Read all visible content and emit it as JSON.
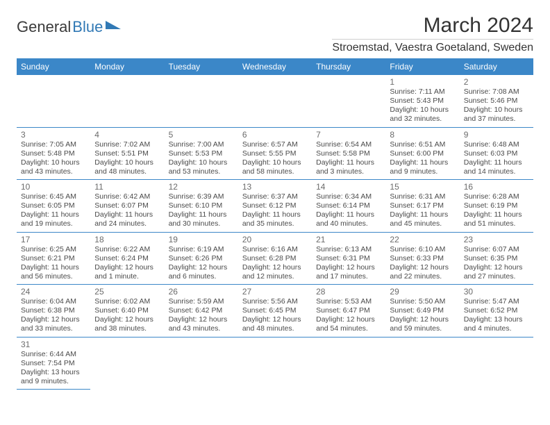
{
  "logo": {
    "text1": "General",
    "text2": "Blue"
  },
  "header": {
    "month_title": "March 2024",
    "location": "Stroemstad, Vaestra Goetaland, Sweden"
  },
  "style": {
    "accent": "#3b87c8",
    "logo_blue": "#3179b5",
    "text_color": "#333333",
    "cell_text": "#4a4a4a",
    "daynum_color": "#6b6b6b",
    "daynum_fontsize": 12,
    "cell_fontsize": 10.5,
    "header_fontsize": 12,
    "title_fontsize": 30,
    "location_fontsize": 16,
    "bg": "#ffffff"
  },
  "days_of_week": [
    "Sunday",
    "Monday",
    "Tuesday",
    "Wednesday",
    "Thursday",
    "Friday",
    "Saturday"
  ],
  "weeks": [
    [
      null,
      null,
      null,
      null,
      null,
      {
        "n": "1",
        "sunrise": "Sunrise: 7:11 AM",
        "sunset": "Sunset: 5:43 PM",
        "daylight1": "Daylight: 10 hours",
        "daylight2": "and 32 minutes."
      },
      {
        "n": "2",
        "sunrise": "Sunrise: 7:08 AM",
        "sunset": "Sunset: 5:46 PM",
        "daylight1": "Daylight: 10 hours",
        "daylight2": "and 37 minutes."
      }
    ],
    [
      {
        "n": "3",
        "sunrise": "Sunrise: 7:05 AM",
        "sunset": "Sunset: 5:48 PM",
        "daylight1": "Daylight: 10 hours",
        "daylight2": "and 43 minutes."
      },
      {
        "n": "4",
        "sunrise": "Sunrise: 7:02 AM",
        "sunset": "Sunset: 5:51 PM",
        "daylight1": "Daylight: 10 hours",
        "daylight2": "and 48 minutes."
      },
      {
        "n": "5",
        "sunrise": "Sunrise: 7:00 AM",
        "sunset": "Sunset: 5:53 PM",
        "daylight1": "Daylight: 10 hours",
        "daylight2": "and 53 minutes."
      },
      {
        "n": "6",
        "sunrise": "Sunrise: 6:57 AM",
        "sunset": "Sunset: 5:55 PM",
        "daylight1": "Daylight: 10 hours",
        "daylight2": "and 58 minutes."
      },
      {
        "n": "7",
        "sunrise": "Sunrise: 6:54 AM",
        "sunset": "Sunset: 5:58 PM",
        "daylight1": "Daylight: 11 hours",
        "daylight2": "and 3 minutes."
      },
      {
        "n": "8",
        "sunrise": "Sunrise: 6:51 AM",
        "sunset": "Sunset: 6:00 PM",
        "daylight1": "Daylight: 11 hours",
        "daylight2": "and 9 minutes."
      },
      {
        "n": "9",
        "sunrise": "Sunrise: 6:48 AM",
        "sunset": "Sunset: 6:03 PM",
        "daylight1": "Daylight: 11 hours",
        "daylight2": "and 14 minutes."
      }
    ],
    [
      {
        "n": "10",
        "sunrise": "Sunrise: 6:45 AM",
        "sunset": "Sunset: 6:05 PM",
        "daylight1": "Daylight: 11 hours",
        "daylight2": "and 19 minutes."
      },
      {
        "n": "11",
        "sunrise": "Sunrise: 6:42 AM",
        "sunset": "Sunset: 6:07 PM",
        "daylight1": "Daylight: 11 hours",
        "daylight2": "and 24 minutes."
      },
      {
        "n": "12",
        "sunrise": "Sunrise: 6:39 AM",
        "sunset": "Sunset: 6:10 PM",
        "daylight1": "Daylight: 11 hours",
        "daylight2": "and 30 minutes."
      },
      {
        "n": "13",
        "sunrise": "Sunrise: 6:37 AM",
        "sunset": "Sunset: 6:12 PM",
        "daylight1": "Daylight: 11 hours",
        "daylight2": "and 35 minutes."
      },
      {
        "n": "14",
        "sunrise": "Sunrise: 6:34 AM",
        "sunset": "Sunset: 6:14 PM",
        "daylight1": "Daylight: 11 hours",
        "daylight2": "and 40 minutes."
      },
      {
        "n": "15",
        "sunrise": "Sunrise: 6:31 AM",
        "sunset": "Sunset: 6:17 PM",
        "daylight1": "Daylight: 11 hours",
        "daylight2": "and 45 minutes."
      },
      {
        "n": "16",
        "sunrise": "Sunrise: 6:28 AM",
        "sunset": "Sunset: 6:19 PM",
        "daylight1": "Daylight: 11 hours",
        "daylight2": "and 51 minutes."
      }
    ],
    [
      {
        "n": "17",
        "sunrise": "Sunrise: 6:25 AM",
        "sunset": "Sunset: 6:21 PM",
        "daylight1": "Daylight: 11 hours",
        "daylight2": "and 56 minutes."
      },
      {
        "n": "18",
        "sunrise": "Sunrise: 6:22 AM",
        "sunset": "Sunset: 6:24 PM",
        "daylight1": "Daylight: 12 hours",
        "daylight2": "and 1 minute."
      },
      {
        "n": "19",
        "sunrise": "Sunrise: 6:19 AM",
        "sunset": "Sunset: 6:26 PM",
        "daylight1": "Daylight: 12 hours",
        "daylight2": "and 6 minutes."
      },
      {
        "n": "20",
        "sunrise": "Sunrise: 6:16 AM",
        "sunset": "Sunset: 6:28 PM",
        "daylight1": "Daylight: 12 hours",
        "daylight2": "and 12 minutes."
      },
      {
        "n": "21",
        "sunrise": "Sunrise: 6:13 AM",
        "sunset": "Sunset: 6:31 PM",
        "daylight1": "Daylight: 12 hours",
        "daylight2": "and 17 minutes."
      },
      {
        "n": "22",
        "sunrise": "Sunrise: 6:10 AM",
        "sunset": "Sunset: 6:33 PM",
        "daylight1": "Daylight: 12 hours",
        "daylight2": "and 22 minutes."
      },
      {
        "n": "23",
        "sunrise": "Sunrise: 6:07 AM",
        "sunset": "Sunset: 6:35 PM",
        "daylight1": "Daylight: 12 hours",
        "daylight2": "and 27 minutes."
      }
    ],
    [
      {
        "n": "24",
        "sunrise": "Sunrise: 6:04 AM",
        "sunset": "Sunset: 6:38 PM",
        "daylight1": "Daylight: 12 hours",
        "daylight2": "and 33 minutes."
      },
      {
        "n": "25",
        "sunrise": "Sunrise: 6:02 AM",
        "sunset": "Sunset: 6:40 PM",
        "daylight1": "Daylight: 12 hours",
        "daylight2": "and 38 minutes."
      },
      {
        "n": "26",
        "sunrise": "Sunrise: 5:59 AM",
        "sunset": "Sunset: 6:42 PM",
        "daylight1": "Daylight: 12 hours",
        "daylight2": "and 43 minutes."
      },
      {
        "n": "27",
        "sunrise": "Sunrise: 5:56 AM",
        "sunset": "Sunset: 6:45 PM",
        "daylight1": "Daylight: 12 hours",
        "daylight2": "and 48 minutes."
      },
      {
        "n": "28",
        "sunrise": "Sunrise: 5:53 AM",
        "sunset": "Sunset: 6:47 PM",
        "daylight1": "Daylight: 12 hours",
        "daylight2": "and 54 minutes."
      },
      {
        "n": "29",
        "sunrise": "Sunrise: 5:50 AM",
        "sunset": "Sunset: 6:49 PM",
        "daylight1": "Daylight: 12 hours",
        "daylight2": "and 59 minutes."
      },
      {
        "n": "30",
        "sunrise": "Sunrise: 5:47 AM",
        "sunset": "Sunset: 6:52 PM",
        "daylight1": "Daylight: 13 hours",
        "daylight2": "and 4 minutes."
      }
    ],
    [
      {
        "n": "31",
        "sunrise": "Sunrise: 6:44 AM",
        "sunset": "Sunset: 7:54 PM",
        "daylight1": "Daylight: 13 hours",
        "daylight2": "and 9 minutes."
      },
      null,
      null,
      null,
      null,
      null,
      null
    ]
  ]
}
